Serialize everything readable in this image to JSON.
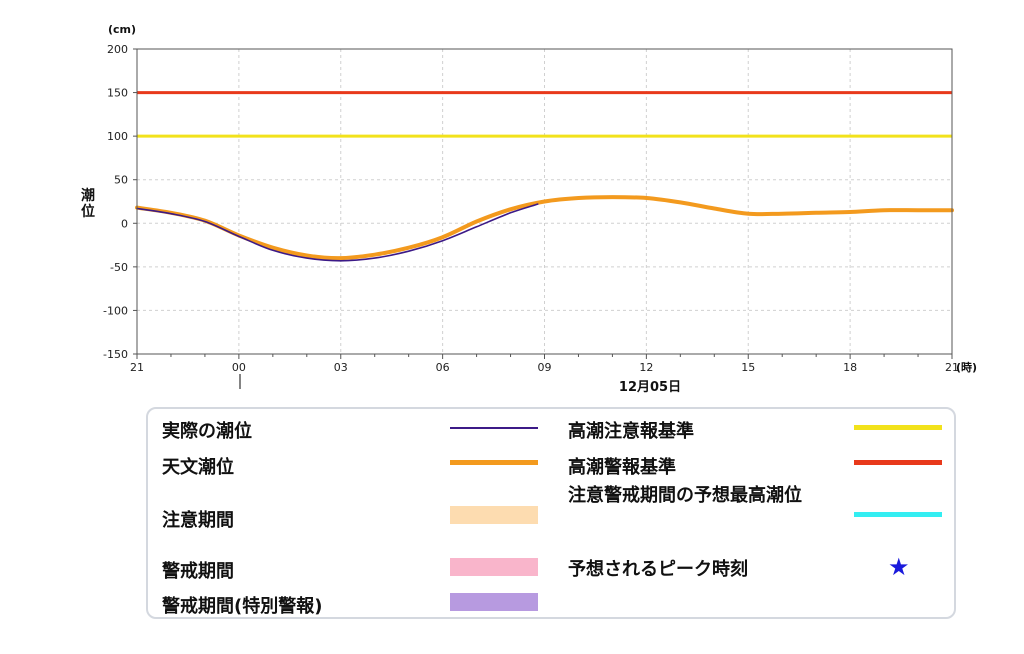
{
  "chart_data": {
    "type": "line",
    "ylabel": "潮位",
    "yunit": "(cm)",
    "xunit": "(時)",
    "date_label": "12月05日",
    "ylim": [
      -150,
      200
    ],
    "yticks": [
      200,
      150,
      100,
      50,
      0,
      -50,
      -100,
      -150
    ],
    "xlim": [
      21,
      45
    ],
    "xticks": [
      {
        "x": 21,
        "label": "21"
      },
      {
        "x": 24,
        "label": "00"
      },
      {
        "x": 27,
        "label": "03"
      },
      {
        "x": 30,
        "label": "06"
      },
      {
        "x": 33,
        "label": "09"
      },
      {
        "x": 36,
        "label": "12"
      },
      {
        "x": 39,
        "label": "15"
      },
      {
        "x": 42,
        "label": "18"
      },
      {
        "x": 45,
        "label": "21"
      }
    ],
    "grid": true,
    "thresholds": [
      {
        "name": "高潮警報基準",
        "value": 150,
        "color": "#e8391b"
      },
      {
        "name": "高潮注意報基準",
        "value": 100,
        "color": "#f2e21b"
      }
    ],
    "series": [
      {
        "name": "天文潮位",
        "color": "#f39a1e",
        "x": [
          21,
          22,
          23,
          24,
          25,
          26,
          27,
          28,
          29,
          30,
          31,
          32,
          33,
          34,
          35,
          36,
          37,
          38,
          39,
          40,
          41,
          42,
          43,
          44,
          45
        ],
        "values": [
          18,
          12,
          3,
          -14,
          -28,
          -37,
          -40,
          -36,
          -28,
          -16,
          2,
          16,
          25,
          29,
          30,
          29,
          24,
          17,
          11,
          11,
          12,
          13,
          15,
          15,
          15
        ]
      },
      {
        "name": "実際の潮位",
        "color": "#3c1a87",
        "x": [
          21,
          22,
          23,
          24,
          25,
          26,
          27,
          28,
          29,
          30,
          31,
          32,
          32.8
        ],
        "values": [
          17,
          11,
          2,
          -15,
          -31,
          -40,
          -43,
          -40,
          -32,
          -20,
          -4,
          12,
          22
        ]
      }
    ]
  },
  "legend": {
    "items": [
      {
        "label": "実際の潮位",
        "type": "line",
        "color": "#3c1a87"
      },
      {
        "label": "天文潮位",
        "type": "thickline",
        "color": "#f39a1e"
      },
      {
        "label": "注意期間",
        "type": "band",
        "color": "#fddcb0"
      },
      {
        "label": "警戒期間",
        "type": "band",
        "color": "#f9b5cb"
      },
      {
        "label": "警戒期間(特別警報)",
        "type": "band",
        "color": "#b79ae0"
      },
      {
        "label": "高潮注意報基準",
        "type": "line",
        "color": "#f2e21b"
      },
      {
        "label": "高潮警報基準",
        "type": "line",
        "color": "#e8391b"
      },
      {
        "label": "注意警戒期間の予想最高潮位",
        "type": "line",
        "color": "#33eef2"
      },
      {
        "label": "予想されるピーク時刻",
        "type": "star",
        "color": "#1a1adc"
      }
    ]
  }
}
